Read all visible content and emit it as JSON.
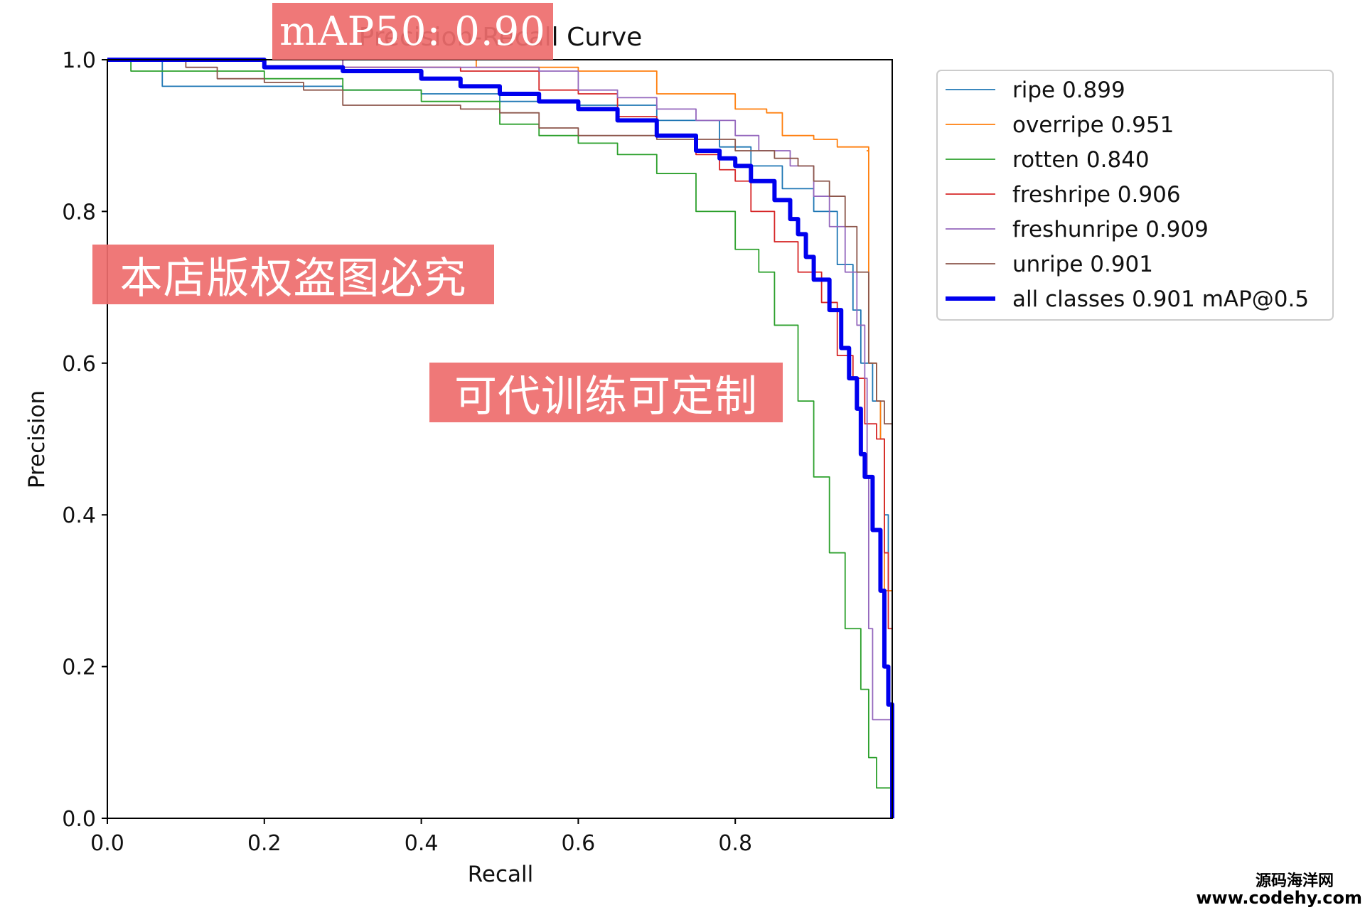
{
  "chart_data": {
    "type": "line",
    "title": "Precision-Recall Curve",
    "xlabel": "Recall",
    "ylabel": "Precision",
    "xlim": [
      0,
      1
    ],
    "ylim": [
      0,
      1
    ],
    "xticks": [
      "0.0",
      "0.2",
      "0.4",
      "0.6",
      "0.8"
    ],
    "yticks": [
      "0.0",
      "0.2",
      "0.4",
      "0.6",
      "0.8",
      "1.0"
    ],
    "grid": false,
    "legend_position": "outside-top-right",
    "series": [
      {
        "name": "ripe 0.899",
        "color": "#1f77b4",
        "width": 1.8,
        "points": [
          [
            0,
            1
          ],
          [
            0.05,
            1
          ],
          [
            0.07,
            0.965
          ],
          [
            0.2,
            0.965
          ],
          [
            0.3,
            0.96
          ],
          [
            0.4,
            0.955
          ],
          [
            0.5,
            0.945
          ],
          [
            0.6,
            0.94
          ],
          [
            0.7,
            0.92
          ],
          [
            0.78,
            0.885
          ],
          [
            0.82,
            0.86
          ],
          [
            0.86,
            0.83
          ],
          [
            0.9,
            0.8
          ],
          [
            0.93,
            0.73
          ],
          [
            0.95,
            0.67
          ],
          [
            0.96,
            0.6
          ],
          [
            0.975,
            0.55
          ],
          [
            0.985,
            0.5
          ],
          [
            0.99,
            0.4
          ],
          [
            0.995,
            0.3
          ],
          [
            1,
            0
          ]
        ]
      },
      {
        "name": "overripe 0.951",
        "color": "#ff7f0e",
        "width": 1.8,
        "points": [
          [
            0,
            1
          ],
          [
            0.3,
            1
          ],
          [
            0.46,
            1
          ],
          [
            0.47,
            0.99
          ],
          [
            0.6,
            0.985
          ],
          [
            0.7,
            0.955
          ],
          [
            0.8,
            0.935
          ],
          [
            0.84,
            0.93
          ],
          [
            0.86,
            0.9
          ],
          [
            0.9,
            0.895
          ],
          [
            0.93,
            0.885
          ],
          [
            0.97,
            0.88
          ],
          [
            0.968,
            0.88
          ],
          [
            0.97,
            0.6
          ],
          [
            0.98,
            0.55
          ],
          [
            0.985,
            0.5
          ],
          [
            0.99,
            0.3
          ],
          [
            1,
            0
          ]
        ]
      },
      {
        "name": "rotten 0.840",
        "color": "#2ca02c",
        "width": 1.8,
        "points": [
          [
            0,
            1
          ],
          [
            0.03,
            0.985
          ],
          [
            0.2,
            0.975
          ],
          [
            0.3,
            0.96
          ],
          [
            0.4,
            0.945
          ],
          [
            0.5,
            0.915
          ],
          [
            0.55,
            0.9
          ],
          [
            0.6,
            0.89
          ],
          [
            0.65,
            0.875
          ],
          [
            0.7,
            0.85
          ],
          [
            0.75,
            0.8
          ],
          [
            0.8,
            0.75
          ],
          [
            0.83,
            0.72
          ],
          [
            0.85,
            0.65
          ],
          [
            0.88,
            0.55
          ],
          [
            0.9,
            0.45
          ],
          [
            0.92,
            0.35
          ],
          [
            0.94,
            0.25
          ],
          [
            0.96,
            0.17
          ],
          [
            0.97,
            0.08
          ],
          [
            0.98,
            0.04
          ],
          [
            1,
            0
          ]
        ]
      },
      {
        "name": "freshripe 0.906",
        "color": "#d62728",
        "width": 1.8,
        "points": [
          [
            0,
            1
          ],
          [
            0.3,
            0.99
          ],
          [
            0.45,
            0.985
          ],
          [
            0.55,
            0.96
          ],
          [
            0.6,
            0.955
          ],
          [
            0.65,
            0.925
          ],
          [
            0.7,
            0.9
          ],
          [
            0.75,
            0.875
          ],
          [
            0.78,
            0.855
          ],
          [
            0.8,
            0.84
          ],
          [
            0.82,
            0.8
          ],
          [
            0.85,
            0.76
          ],
          [
            0.88,
            0.72
          ],
          [
            0.91,
            0.68
          ],
          [
            0.93,
            0.61
          ],
          [
            0.95,
            0.58
          ],
          [
            0.965,
            0.52
          ],
          [
            0.98,
            0.5
          ],
          [
            0.99,
            0.35
          ],
          [
            0.995,
            0.25
          ],
          [
            1,
            0
          ]
        ]
      },
      {
        "name": "freshunripe 0.909",
        "color": "#9467bd",
        "width": 1.8,
        "points": [
          [
            0,
            1
          ],
          [
            0.3,
            0.99
          ],
          [
            0.55,
            0.985
          ],
          [
            0.6,
            0.96
          ],
          [
            0.65,
            0.95
          ],
          [
            0.7,
            0.935
          ],
          [
            0.75,
            0.92
          ],
          [
            0.8,
            0.9
          ],
          [
            0.83,
            0.88
          ],
          [
            0.87,
            0.86
          ],
          [
            0.9,
            0.82
          ],
          [
            0.92,
            0.78
          ],
          [
            0.94,
            0.72
          ],
          [
            0.955,
            0.65
          ],
          [
            0.965,
            0.58
          ],
          [
            0.968,
            0.45
          ],
          [
            0.97,
            0.25
          ],
          [
            0.975,
            0.13
          ],
          [
            1,
            0
          ]
        ]
      },
      {
        "name": "unripe 0.901",
        "color": "#8c564b",
        "width": 1.8,
        "points": [
          [
            0,
            1
          ],
          [
            0.1,
            0.99
          ],
          [
            0.14,
            0.975
          ],
          [
            0.2,
            0.97
          ],
          [
            0.25,
            0.96
          ],
          [
            0.3,
            0.94
          ],
          [
            0.45,
            0.935
          ],
          [
            0.5,
            0.93
          ],
          [
            0.55,
            0.91
          ],
          [
            0.6,
            0.9
          ],
          [
            0.7,
            0.895
          ],
          [
            0.8,
            0.88
          ],
          [
            0.85,
            0.87
          ],
          [
            0.88,
            0.86
          ],
          [
            0.9,
            0.84
          ],
          [
            0.92,
            0.82
          ],
          [
            0.94,
            0.78
          ],
          [
            0.955,
            0.72
          ],
          [
            0.97,
            0.6
          ],
          [
            0.98,
            0.55
          ],
          [
            0.99,
            0.52
          ],
          [
            1,
            0
          ]
        ]
      },
      {
        "name": "all classes 0.901 mAP@0.5",
        "color": "#0000ee",
        "width": 6,
        "points": [
          [
            0,
            1
          ],
          [
            0.2,
            0.99
          ],
          [
            0.3,
            0.985
          ],
          [
            0.4,
            0.975
          ],
          [
            0.45,
            0.965
          ],
          [
            0.5,
            0.955
          ],
          [
            0.55,
            0.945
          ],
          [
            0.6,
            0.935
          ],
          [
            0.65,
            0.92
          ],
          [
            0.7,
            0.9
          ],
          [
            0.75,
            0.88
          ],
          [
            0.78,
            0.87
          ],
          [
            0.8,
            0.86
          ],
          [
            0.82,
            0.84
          ],
          [
            0.85,
            0.815
          ],
          [
            0.87,
            0.79
          ],
          [
            0.88,
            0.77
          ],
          [
            0.89,
            0.74
          ],
          [
            0.9,
            0.71
          ],
          [
            0.92,
            0.67
          ],
          [
            0.935,
            0.62
          ],
          [
            0.945,
            0.58
          ],
          [
            0.955,
            0.54
          ],
          [
            0.96,
            0.48
          ],
          [
            0.965,
            0.45
          ],
          [
            0.975,
            0.38
          ],
          [
            0.985,
            0.3
          ],
          [
            0.99,
            0.2
          ],
          [
            0.995,
            0.15
          ],
          [
            1,
            0
          ]
        ]
      }
    ]
  },
  "overlays": {
    "map_badge": "mAP50: 0.90",
    "copyright": "本店版权盗图必究",
    "training": "可代训练可定制",
    "site_cn": "源码海洋网",
    "site_url": "www.codehy.com"
  }
}
